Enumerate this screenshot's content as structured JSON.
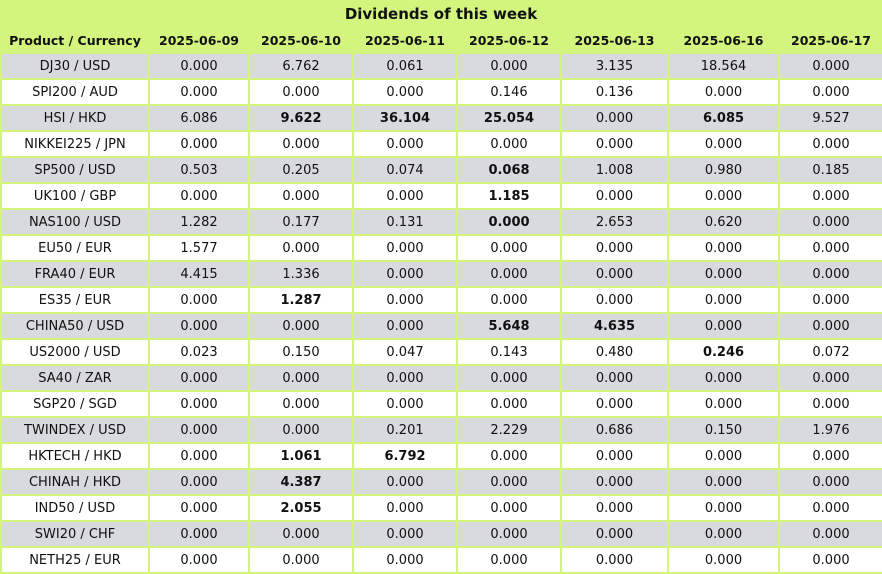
{
  "title": "Dividends of this week",
  "header": {
    "product_label": "Product / Currency",
    "dates": [
      "2025-06-09",
      "2025-06-10",
      "2025-06-11",
      "2025-06-12",
      "2025-06-13",
      "2025-06-16",
      "2025-06-17"
    ]
  },
  "rows": [
    {
      "product": "DJ30 / USD",
      "values": [
        "0.000",
        "6.762",
        "0.061",
        "0.000",
        "3.135",
        "18.564",
        "0.000"
      ],
      "bold": []
    },
    {
      "product": "SPI200 / AUD",
      "values": [
        "0.000",
        "0.000",
        "0.000",
        "0.146",
        "0.136",
        "0.000",
        "0.000"
      ],
      "bold": []
    },
    {
      "product": "HSI / HKD",
      "values": [
        "6.086",
        "9.622",
        "36.104",
        "25.054",
        "0.000",
        "6.085",
        "9.527"
      ],
      "bold": [
        1,
        2,
        3,
        5
      ]
    },
    {
      "product": "NIKKEI225 / JPN",
      "values": [
        "0.000",
        "0.000",
        "0.000",
        "0.000",
        "0.000",
        "0.000",
        "0.000"
      ],
      "bold": []
    },
    {
      "product": "SP500 / USD",
      "values": [
        "0.503",
        "0.205",
        "0.074",
        "0.068",
        "1.008",
        "0.980",
        "0.185"
      ],
      "bold": [
        3
      ]
    },
    {
      "product": "UK100 / GBP",
      "values": [
        "0.000",
        "0.000",
        "0.000",
        "1.185",
        "0.000",
        "0.000",
        "0.000"
      ],
      "bold": [
        3
      ]
    },
    {
      "product": "NAS100 / USD",
      "values": [
        "1.282",
        "0.177",
        "0.131",
        "0.000",
        "2.653",
        "0.620",
        "0.000"
      ],
      "bold": [
        3
      ]
    },
    {
      "product": "EU50 / EUR",
      "values": [
        "1.577",
        "0.000",
        "0.000",
        "0.000",
        "0.000",
        "0.000",
        "0.000"
      ],
      "bold": []
    },
    {
      "product": "FRA40 / EUR",
      "values": [
        "4.415",
        "1.336",
        "0.000",
        "0.000",
        "0.000",
        "0.000",
        "0.000"
      ],
      "bold": []
    },
    {
      "product": "ES35 / EUR",
      "values": [
        "0.000",
        "1.287",
        "0.000",
        "0.000",
        "0.000",
        "0.000",
        "0.000"
      ],
      "bold": [
        1
      ]
    },
    {
      "product": "CHINA50 / USD",
      "values": [
        "0.000",
        "0.000",
        "0.000",
        "5.648",
        "4.635",
        "0.000",
        "0.000"
      ],
      "bold": [
        3,
        4
      ]
    },
    {
      "product": "US2000 / USD",
      "values": [
        "0.023",
        "0.150",
        "0.047",
        "0.143",
        "0.480",
        "0.246",
        "0.072"
      ],
      "bold": [
        5
      ]
    },
    {
      "product": "SA40 / ZAR",
      "values": [
        "0.000",
        "0.000",
        "0.000",
        "0.000",
        "0.000",
        "0.000",
        "0.000"
      ],
      "bold": []
    },
    {
      "product": "SGP20 / SGD",
      "values": [
        "0.000",
        "0.000",
        "0.000",
        "0.000",
        "0.000",
        "0.000",
        "0.000"
      ],
      "bold": []
    },
    {
      "product": "TWINDEX / USD",
      "values": [
        "0.000",
        "0.000",
        "0.201",
        "2.229",
        "0.686",
        "0.150",
        "1.976"
      ],
      "bold": []
    },
    {
      "product": "HKTECH / HKD",
      "values": [
        "0.000",
        "1.061",
        "6.792",
        "0.000",
        "0.000",
        "0.000",
        "0.000"
      ],
      "bold": [
        1,
        2
      ]
    },
    {
      "product": "CHINAH / HKD",
      "values": [
        "0.000",
        "4.387",
        "0.000",
        "0.000",
        "0.000",
        "0.000",
        "0.000"
      ],
      "bold": [
        1
      ]
    },
    {
      "product": "IND50 / USD",
      "values": [
        "0.000",
        "2.055",
        "0.000",
        "0.000",
        "0.000",
        "0.000",
        "0.000"
      ],
      "bold": [
        1
      ]
    },
    {
      "product": "SWI20 / CHF",
      "values": [
        "0.000",
        "0.000",
        "0.000",
        "0.000",
        "0.000",
        "0.000",
        "0.000"
      ],
      "bold": []
    },
    {
      "product": "NETH25 / EUR",
      "values": [
        "0.000",
        "0.000",
        "0.000",
        "0.000",
        "0.000",
        "0.000",
        "0.000"
      ],
      "bold": []
    }
  ]
}
